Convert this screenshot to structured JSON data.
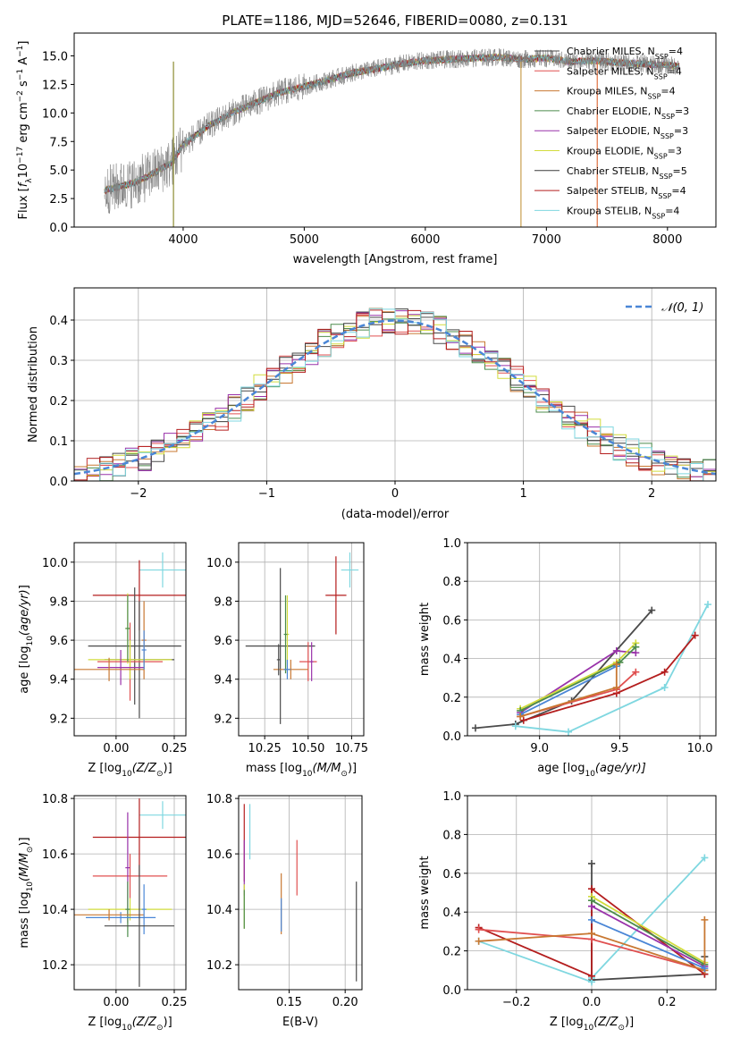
{
  "chart_data": [
    {
      "type": "line",
      "title": "PLATE=1186, MJD=52646, FIBERID=0080, z=0.131",
      "xlabel": "wavelength [Angstrom, rest frame]",
      "ylabel_parts": [
        "Flux [",
        "f",
        "λ",
        "10",
        "−17",
        " erg cm",
        "−2",
        " s",
        "−1",
        " A",
        "−1",
        "]"
      ],
      "xlim": [
        3100,
        8400
      ],
      "ylim": [
        0,
        17
      ],
      "xticks": [
        4000,
        5000,
        6000,
        7000,
        8000
      ],
      "yticks": [
        0.0,
        2.5,
        5.0,
        7.5,
        10.0,
        12.5,
        15.0
      ],
      "legend_position": "right",
      "series": [
        {
          "name": "Chabrier MILES, N",
          "sub": "SSP",
          "tail": "=4",
          "color": "#4a4a4a"
        },
        {
          "name": "Salpeter MILES, N",
          "sub": "SSP",
          "tail": "=4",
          "color": "#e05050"
        },
        {
          "name": "Kroupa MILES, N",
          "sub": "SSP",
          "tail": "=4",
          "color": "#c87832"
        },
        {
          "name": "Chabrier ELODIE, N",
          "sub": "SSP",
          "tail": "=3",
          "color": "#4c8c4c"
        },
        {
          "name": "Salpeter ELODIE, N",
          "sub": "SSP",
          "tail": "=3",
          "color": "#9932aa"
        },
        {
          "name": "Kroupa ELODIE, N",
          "sub": "SSP",
          "tail": "=3",
          "color": "#d2dc3c"
        },
        {
          "name": "Chabrier STELIB, N",
          "sub": "SSP",
          "tail": "=5",
          "color": "#3c3c3c"
        },
        {
          "name": "Salpeter STELIB, N",
          "sub": "SSP",
          "tail": "=4",
          "color": "#b41e1e"
        },
        {
          "name": "Kroupa STELIB, N",
          "sub": "SSP",
          "tail": "=4",
          "color": "#7fd7e0"
        }
      ],
      "data_color": "#808080",
      "continuum_knots": {
        "x": [
          3350,
          3600,
          3700,
          3900,
          4000,
          4200,
          4400,
          4600,
          4800,
          5000,
          5200,
          5400,
          5600,
          5800,
          6000,
          6200,
          6400,
          6600,
          6800,
          7000,
          7200,
          7400,
          7600,
          7800,
          8000,
          8100
        ],
        "y": [
          3.2,
          3.9,
          4.4,
          5.6,
          7.2,
          8.8,
          10.0,
          10.9,
          11.8,
          12.3,
          12.9,
          13.5,
          13.9,
          14.3,
          14.6,
          14.7,
          14.8,
          14.9,
          14.7,
          14.8,
          14.5,
          14.6,
          14.4,
          14.3,
          14.2,
          14.1
        ]
      },
      "spike_lines": [
        {
          "x": 3920,
          "y": 0.0
        },
        {
          "x": 6790,
          "y": 0.0
        },
        {
          "x": 7420,
          "y": 0.0
        }
      ]
    },
    {
      "type": "area",
      "xlabel": "(data-model)/error",
      "ylabel": "Normed distribution",
      "xlim": [
        -2.5,
        2.5
      ],
      "ylim": [
        0,
        0.48
      ],
      "xticks": [
        -2,
        -1,
        0,
        1,
        2
      ],
      "yticks": [
        0.0,
        0.1,
        0.2,
        0.3,
        0.4
      ],
      "legend": "𝒩(0, 1)",
      "gaussian_color": "#4a86d6",
      "bin_width": 0.1,
      "bin_start": -2.5,
      "hist_colors": [
        "#4a4a4a",
        "#e05050",
        "#c87832",
        "#4c8c4c",
        "#9932aa",
        "#d2dc3c",
        "#3c3c3c",
        "#b41e1e",
        "#7fd7e0"
      ]
    },
    {
      "type": "scatter",
      "xlabel_main": "Z [log",
      "xlabel_sub": "10",
      "xlabel_rest": "(Z/Z",
      "xlabel_sun": "⊙",
      "xlabel_end": ")]",
      "ylabel": "age  [log₁₀(age/yr)]",
      "xlim": [
        -0.18,
        0.3
      ],
      "ylim": [
        9.11,
        10.1
      ],
      "xticks": [
        0.0,
        0.25
      ],
      "xtick_labels": [
        "0.00",
        "0.25"
      ],
      "yticks": [
        9.2,
        9.4,
        9.6,
        9.8,
        10.0
      ],
      "points": [
        {
          "x": 0.2,
          "y": 9.96,
          "xerr": 0.1,
          "yerr": 0.09,
          "color": "#7fd7e0"
        },
        {
          "x": 0.1,
          "y": 9.83,
          "xerr": 0.2,
          "yerr": 0.18,
          "color": "#b41e1e"
        },
        {
          "x": 0.08,
          "y": 9.57,
          "xerr": 0.2,
          "yerr": 0.3,
          "color": "#4a4a4a"
        },
        {
          "x": 0.1,
          "y": 9.5,
          "xerr": 0.15,
          "yerr": 0.3,
          "color": "#4a4a4a"
        },
        {
          "x": 0.06,
          "y": 9.49,
          "xerr": 0.14,
          "yerr": 0.2,
          "color": "#e05050"
        },
        {
          "x": 0.06,
          "y": 9.5,
          "xerr": 0.18,
          "yerr": 0.1,
          "color": "#d2dc3c"
        },
        {
          "x": 0.05,
          "y": 9.66,
          "xerr": 0.01,
          "yerr": 0.18,
          "color": "#d2dc3c"
        },
        {
          "x": 0.05,
          "y": 9.66,
          "xerr": 0.01,
          "yerr": 0.17,
          "color": "#4c8c4c"
        },
        {
          "x": 0.02,
          "y": 9.46,
          "xerr": 0.1,
          "yerr": 0.09,
          "color": "#9932aa"
        },
        {
          "x": 0.12,
          "y": 9.6,
          "xerr": 0.01,
          "yerr": 0.2,
          "color": "#c87832"
        },
        {
          "x": -0.03,
          "y": 9.45,
          "xerr": 0.15,
          "yerr": 0.06,
          "color": "#c87832"
        },
        {
          "x": 0.12,
          "y": 9.55,
          "xerr": 0.01,
          "yerr": 0.1,
          "color": "#4a86d6"
        }
      ]
    },
    {
      "type": "scatter",
      "xlabel_main": "mass [log",
      "xlabel_sub": "10",
      "xlabel_rest": "(M/M",
      "xlabel_sun": "⊙",
      "xlabel_end": ")]",
      "ylabel": "",
      "xlim": [
        10.1,
        10.82
      ],
      "ylim": [
        9.11,
        10.1
      ],
      "xticks": [
        10.25,
        10.5,
        10.75
      ],
      "xtick_labels": [
        "10.25",
        "10.50",
        "10.75"
      ],
      "yticks": [
        9.2,
        9.4,
        9.6,
        9.8,
        10.0
      ],
      "points": [
        {
          "x": 10.74,
          "y": 9.96,
          "xerr": 0.05,
          "yerr": 0.09,
          "color": "#7fd7e0"
        },
        {
          "x": 10.66,
          "y": 9.83,
          "xerr": 0.06,
          "yerr": 0.2,
          "color": "#b41e1e"
        },
        {
          "x": 10.34,
          "y": 9.57,
          "xerr": 0.2,
          "yerr": 0.4,
          "color": "#4a4a4a"
        },
        {
          "x": 10.38,
          "y": 9.63,
          "xerr": 0.01,
          "yerr": 0.2,
          "color": "#d2dc3c"
        },
        {
          "x": 10.37,
          "y": 9.63,
          "xerr": 0.01,
          "yerr": 0.2,
          "color": "#4c8c4c"
        },
        {
          "x": 10.5,
          "y": 9.49,
          "xerr": 0.05,
          "yerr": 0.1,
          "color": "#e05050"
        },
        {
          "x": 10.52,
          "y": 9.49,
          "xerr": 0.01,
          "yerr": 0.1,
          "color": "#9932aa"
        },
        {
          "x": 10.4,
          "y": 9.45,
          "xerr": 0.1,
          "yerr": 0.05,
          "color": "#c87832"
        },
        {
          "x": 10.38,
          "y": 9.45,
          "xerr": 0.02,
          "yerr": 0.05,
          "color": "#4a86d6"
        },
        {
          "x": 10.33,
          "y": 9.5,
          "xerr": 0.01,
          "yerr": 0.08,
          "color": "#4a4a4a"
        }
      ]
    },
    {
      "type": "line",
      "xlabel_main": "age  [log",
      "xlabel_sub": "10",
      "xlabel_rest": "(age/yr)]",
      "ylabel": "mass weight",
      "xlim": [
        8.55,
        10.1
      ],
      "ylim": [
        0,
        1
      ],
      "xticks": [
        9.0,
        9.5,
        10.0
      ],
      "xtick_labels": [
        "9.0",
        "9.5",
        "10.0"
      ],
      "yticks": [
        0.0,
        0.2,
        0.4,
        0.6,
        0.8,
        1.0
      ],
      "lines": [
        {
          "color": "#4a4a4a",
          "x": [
            8.6,
            8.85,
            9.2,
            9.7
          ],
          "y": [
            0.04,
            0.06,
            0.18,
            0.65
          ]
        },
        {
          "color": "#7fd7e0",
          "x": [
            8.85,
            9.18,
            9.78,
            10.05
          ],
          "y": [
            0.05,
            0.02,
            0.25,
            0.68
          ]
        },
        {
          "color": "#b41e1e",
          "x": [
            8.9,
            9.48,
            9.78,
            9.97
          ],
          "y": [
            0.08,
            0.22,
            0.33,
            0.52
          ]
        },
        {
          "color": "#9932aa",
          "x": [
            8.88,
            9.48,
            9.6
          ],
          "y": [
            0.12,
            0.44,
            0.43
          ]
        },
        {
          "color": "#d2dc3c",
          "x": [
            8.88,
            9.48,
            9.6
          ],
          "y": [
            0.14,
            0.38,
            0.48
          ]
        },
        {
          "color": "#4c8c4c",
          "x": [
            8.88,
            9.5,
            9.6
          ],
          "y": [
            0.13,
            0.38,
            0.46
          ]
        },
        {
          "color": "#4a86d6",
          "x": [
            8.88,
            9.48
          ],
          "y": [
            0.11,
            0.36
          ]
        },
        {
          "color": "#e05050",
          "x": [
            8.88,
            9.48,
            9.6
          ],
          "y": [
            0.1,
            0.24,
            0.33
          ]
        },
        {
          "color": "#c87832",
          "x": [
            8.88,
            9.48,
            9.48
          ],
          "y": [
            0.1,
            0.25,
            0.37
          ]
        }
      ]
    },
    {
      "type": "scatter",
      "xlabel_main": "Z [log",
      "xlabel_sub": "10",
      "xlabel_rest": "(Z/Z",
      "xlabel_sun": "⊙",
      "xlabel_end": ")]",
      "ylabel": "mass [log₁₀(M/M⊙)]",
      "xlim": [
        -0.18,
        0.3
      ],
      "ylim": [
        10.11,
        10.81
      ],
      "xticks": [
        0.0,
        0.25
      ],
      "xtick_labels": [
        "0.00",
        "0.25"
      ],
      "yticks": [
        10.2,
        10.4,
        10.6,
        10.8
      ],
      "points": [
        {
          "x": 0.2,
          "y": 10.74,
          "xerr": 0.1,
          "yerr": 0.05,
          "color": "#7fd7e0"
        },
        {
          "x": 0.1,
          "y": 10.66,
          "xerr": 0.2,
          "yerr": 0.14,
          "color": "#b41e1e"
        },
        {
          "x": 0.06,
          "y": 10.52,
          "xerr": 0.16,
          "yerr": 0.08,
          "color": "#e05050"
        },
        {
          "x": 0.05,
          "y": 10.55,
          "xerr": 0.01,
          "yerr": 0.2,
          "color": "#9932aa"
        },
        {
          "x": 0.06,
          "y": 10.4,
          "xerr": 0.18,
          "yerr": 0.04,
          "color": "#d2dc3c"
        },
        {
          "x": 0.05,
          "y": 10.4,
          "xerr": 0.01,
          "yerr": 0.1,
          "color": "#4c8c4c"
        },
        {
          "x": 0.02,
          "y": 10.37,
          "xerr": 0.15,
          "yerr": 0.02,
          "color": "#4a86d6"
        },
        {
          "x": -0.03,
          "y": 10.38,
          "xerr": 0.15,
          "yerr": 0.02,
          "color": "#c87832"
        },
        {
          "x": 0.12,
          "y": 10.4,
          "xerr": 0.01,
          "yerr": 0.09,
          "color": "#4a86d6"
        },
        {
          "x": 0.1,
          "y": 10.34,
          "xerr": 0.15,
          "yerr": 0.22,
          "color": "#4a4a4a"
        }
      ]
    },
    {
      "type": "scatter",
      "xlabel": "E(B-V)",
      "ylabel": "",
      "xlim": [
        0.105,
        0.215
      ],
      "ylim": [
        10.11,
        10.81
      ],
      "xticks": [
        0.15,
        0.2
      ],
      "xtick_labels": [
        "0.15",
        "0.20"
      ],
      "yticks": [
        10.2,
        10.4,
        10.6,
        10.8
      ],
      "points": [
        {
          "x": 0.11,
          "y": 10.64,
          "yerr": 0.14,
          "color": "#b41e1e"
        },
        {
          "x": 0.11,
          "y": 10.55,
          "yerr": 0.1,
          "color": "#9932aa"
        },
        {
          "x": 0.11,
          "y": 10.41,
          "yerr": 0.08,
          "color": "#d2dc3c"
        },
        {
          "x": 0.11,
          "y": 10.4,
          "yerr": 0.07,
          "color": "#4c8c4c"
        },
        {
          "x": 0.115,
          "y": 10.68,
          "yerr": 0.1,
          "color": "#7fd7e0"
        },
        {
          "x": 0.143,
          "y": 10.42,
          "yerr": 0.11,
          "color": "#c87832"
        },
        {
          "x": 0.143,
          "y": 10.38,
          "yerr": 0.06,
          "color": "#4a86d6"
        },
        {
          "x": 0.157,
          "y": 10.55,
          "yerr": 0.1,
          "color": "#e05050"
        },
        {
          "x": 0.21,
          "y": 10.32,
          "yerr": 0.18,
          "color": "#4a4a4a"
        }
      ]
    },
    {
      "type": "line",
      "xlabel_main": "Z [log",
      "xlabel_sub": "10",
      "xlabel_rest": "(Z/Z",
      "xlabel_sun": "⊙",
      "xlabel_end": ")]",
      "ylabel": "mass weight",
      "xlim": [
        -0.33,
        0.33
      ],
      "ylim": [
        0,
        1
      ],
      "xticks": [
        -0.2,
        0.0,
        0.2
      ],
      "xtick_labels": [
        "−0.2",
        "0.0",
        "0.2"
      ],
      "yticks": [
        0.0,
        0.2,
        0.4,
        0.6,
        0.8,
        1.0
      ],
      "lines": [
        {
          "color": "#4a4a4a",
          "x": [
            0.0,
            0.0,
            0.3,
            0.3
          ],
          "y": [
            0.65,
            0.05,
            0.08,
            0.17
          ]
        },
        {
          "color": "#7fd7e0",
          "x": [
            -0.3,
            0.0,
            0.0,
            0.3
          ],
          "y": [
            0.25,
            0.04,
            0.06,
            0.68
          ]
        },
        {
          "color": "#b41e1e",
          "x": [
            -0.3,
            0.0,
            0.0,
            0.3
          ],
          "y": [
            0.32,
            0.07,
            0.52,
            0.08
          ]
        },
        {
          "color": "#9932aa",
          "x": [
            0.0,
            0.3
          ],
          "y": [
            0.43,
            0.12
          ]
        },
        {
          "color": "#d2dc3c",
          "x": [
            0.0,
            0.3
          ],
          "y": [
            0.48,
            0.14
          ]
        },
        {
          "color": "#4c8c4c",
          "x": [
            0.0,
            0.3
          ],
          "y": [
            0.46,
            0.13
          ]
        },
        {
          "color": "#e05050",
          "x": [
            -0.3,
            0.0,
            0.3
          ],
          "y": [
            0.31,
            0.26,
            0.1
          ]
        },
        {
          "color": "#c87832",
          "x": [
            -0.3,
            0.0,
            0.3,
            0.3
          ],
          "y": [
            0.25,
            0.29,
            0.1,
            0.36
          ]
        },
        {
          "color": "#4a86d6",
          "x": [
            0.0,
            0.3
          ],
          "y": [
            0.36,
            0.11
          ]
        }
      ]
    }
  ]
}
